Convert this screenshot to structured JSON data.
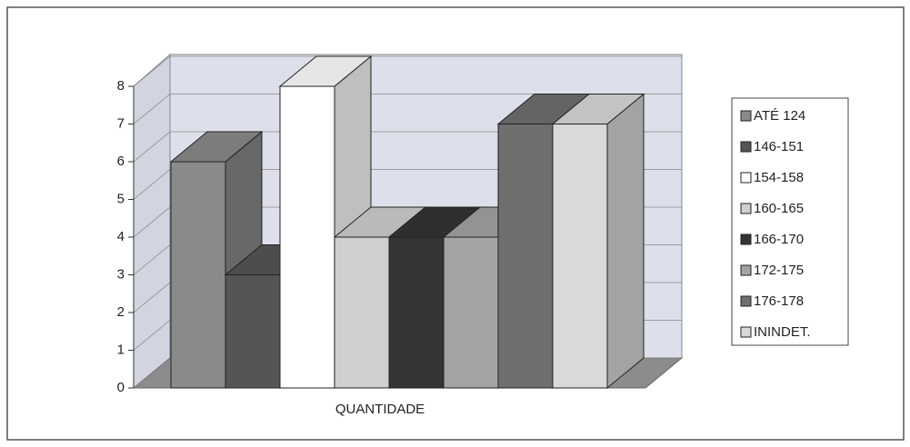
{
  "chart_data": {
    "type": "bar3d",
    "categories": [
      "QUANTIDADE"
    ],
    "series": [
      {
        "name": "ATÉ 124",
        "color": "#8a8a8a",
        "values": [
          6
        ]
      },
      {
        "name": "146-151",
        "color": "#555555",
        "values": [
          3
        ]
      },
      {
        "name": "154-158",
        "color": "#ffffff",
        "values": [
          8
        ]
      },
      {
        "name": "160-165",
        "color": "#cfcfcf",
        "values": [
          4
        ]
      },
      {
        "name": "166-170",
        "color": "#343434",
        "values": [
          4
        ]
      },
      {
        "name": "172-175",
        "color": "#a3a3a3",
        "values": [
          4
        ]
      },
      {
        "name": "176-178",
        "color": "#6f6f6f",
        "values": [
          7
        ]
      },
      {
        "name": "ININDET.",
        "color": "#d9d9d9",
        "values": [
          7
        ]
      }
    ],
    "ylim": [
      0,
      8
    ],
    "yticks": [
      0,
      1,
      2,
      3,
      4,
      5,
      6,
      7,
      8
    ],
    "grid": true,
    "legend": "right"
  }
}
